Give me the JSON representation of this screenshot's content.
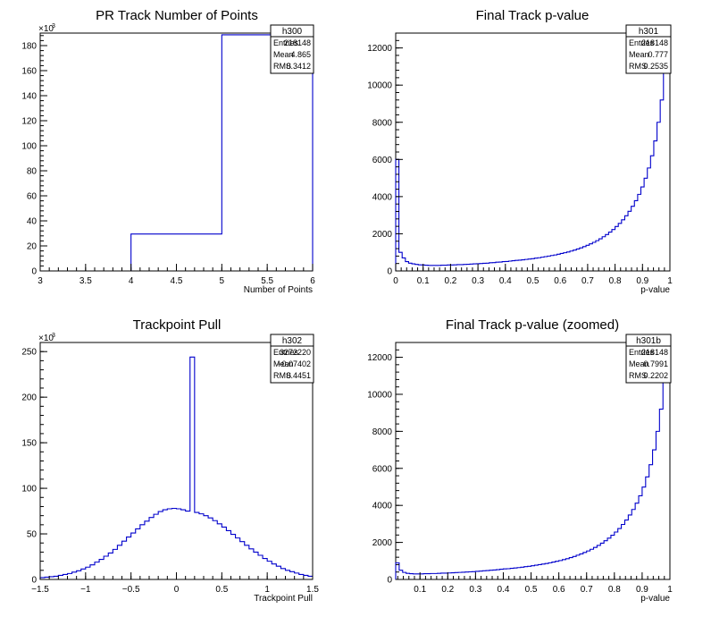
{
  "chart_data": [
    {
      "id": "h300",
      "type": "histogram",
      "title": "PR Track Number of Points",
      "xlabel": "Number of Points",
      "ylabel": "",
      "xlim": [
        3,
        6
      ],
      "ylim": [
        0,
        190000
      ],
      "y_exponent_label": "×10",
      "y_exponent_sup": "3",
      "x_ticks": [
        "3",
        "3.5",
        "4",
        "4.5",
        "5",
        "5.5",
        "6"
      ],
      "y_ticks": [
        "0",
        "20",
        "40",
        "60",
        "80",
        "100",
        "120",
        "140",
        "160",
        "180"
      ],
      "line_color": "#0000cc",
      "stats": {
        "name": "h300",
        "rows": [
          [
            "Entries",
            "218148"
          ],
          [
            "Mean",
            "4.865"
          ],
          [
            "RMS",
            "0.3412"
          ]
        ]
      },
      "bins": {
        "edges": [
          4,
          5,
          6
        ],
        "values": [
          29500,
          188600
        ]
      }
    },
    {
      "id": "h301",
      "type": "histogram",
      "title": "Final Track p-value",
      "xlabel": "p-value",
      "ylabel": "",
      "xlim": [
        0,
        1
      ],
      "ylim": [
        0,
        12800
      ],
      "x_ticks": [
        "0",
        "0.1",
        "0.2",
        "0.3",
        "0.4",
        "0.5",
        "0.6",
        "0.7",
        "0.8",
        "0.9",
        "1"
      ],
      "y_ticks": [
        "0",
        "2000",
        "4000",
        "6000",
        "8000",
        "10000",
        "12000"
      ],
      "line_color": "#0000cc",
      "stats": {
        "name": "h301",
        "rows": [
          [
            "Entries",
            "218148"
          ],
          [
            "Mean",
            "0.777"
          ],
          [
            "RMS",
            "0.2535"
          ]
        ]
      },
      "bins": {
        "xmin": 0,
        "xmax": 1,
        "values": [
          6000,
          1000,
          700,
          500,
          420,
          380,
          350,
          330,
          320,
          310,
          300,
          300,
          300,
          300,
          310,
          310,
          320,
          320,
          330,
          340,
          340,
          350,
          360,
          370,
          380,
          390,
          400,
          410,
          420,
          440,
          450,
          470,
          480,
          500,
          510,
          530,
          550,
          570,
          580,
          600,
          620,
          640,
          660,
          690,
          710,
          740,
          770,
          800,
          830,
          860,
          900,
          940,
          980,
          1020,
          1070,
          1120,
          1180,
          1240,
          1310,
          1380,
          1460,
          1540,
          1630,
          1730,
          1840,
          1960,
          2090,
          2230,
          2390,
          2560,
          2750,
          2970,
          3210,
          3480,
          3780,
          4120,
          4520,
          4990,
          5540,
          6200,
          7000,
          8000,
          9200,
          10700,
          12800
        ]
      }
    },
    {
      "id": "h302",
      "type": "histogram",
      "title": "Trackpoint Pull",
      "xlabel": "Trackpoint Pull",
      "ylabel": "",
      "xlim": [
        -1.5,
        1.5
      ],
      "ylim": [
        0,
        260000
      ],
      "y_exponent_label": "×10",
      "y_exponent_sup": "3",
      "x_ticks": [
        "−1.5",
        "−1",
        "−0.5",
        "0",
        "0.5",
        "1",
        "1.5"
      ],
      "x_tick_values": [
        -1.5,
        -1,
        -0.5,
        0,
        0.5,
        1,
        1.5
      ],
      "y_ticks": [
        "0",
        "50",
        "100",
        "150",
        "200",
        "250"
      ],
      "line_color": "#0000cc",
      "stats": {
        "name": "h302",
        "rows": [
          [
            "Entries",
            "3272220"
          ],
          [
            "Mean",
            "−0.07402"
          ],
          [
            "RMS",
            "0.4451"
          ]
        ]
      },
      "bins": {
        "xmin": -1.5,
        "xmax": 1.5,
        "values": [
          2000,
          2500,
          3000,
          3500,
          4500,
          5500,
          6500,
          8000,
          9500,
          11500,
          13500,
          16000,
          19000,
          22000,
          25500,
          29000,
          33000,
          37500,
          42000,
          46500,
          51000,
          55500,
          60000,
          64000,
          68000,
          71500,
          74500,
          76500,
          77500,
          78000,
          77500,
          76500,
          75000,
          244000,
          73500,
          72000,
          70000,
          67500,
          64500,
          61000,
          57500,
          53500,
          49500,
          45500,
          41500,
          37500,
          33500,
          30000,
          26500,
          23000,
          20000,
          17000,
          14500,
          12000,
          10000,
          8500,
          7000,
          5500,
          4500,
          3500
        ]
      }
    },
    {
      "id": "h301b",
      "type": "histogram",
      "title": "Final Track p-value (zoomed)",
      "xlabel": "p-value",
      "ylabel": "",
      "xlim": [
        0.0125,
        1
      ],
      "ylim": [
        0,
        12800
      ],
      "x_ticks": [
        "0.1",
        "0.2",
        "0.3",
        "0.4",
        "0.5",
        "0.6",
        "0.7",
        "0.8",
        "0.9",
        "1"
      ],
      "x_tick_values": [
        0.1,
        0.2,
        0.3,
        0.4,
        0.5,
        0.6,
        0.7,
        0.8,
        0.9,
        1
      ],
      "y_ticks": [
        "0",
        "2000",
        "4000",
        "6000",
        "8000",
        "10000",
        "12000"
      ],
      "line_color": "#0000cc",
      "stats": {
        "name": "h301b",
        "rows": [
          [
            "Entries",
            "218148"
          ],
          [
            "Mean",
            "0.7991"
          ],
          [
            "RMS",
            "0.2202"
          ]
        ]
      },
      "bins": {
        "xmin": 0.0125,
        "xmax": 1,
        "values": [
          900,
          500,
          380,
          330,
          310,
          300,
          300,
          300,
          310,
          310,
          320,
          320,
          330,
          340,
          340,
          350,
          360,
          370,
          380,
          390,
          400,
          410,
          420,
          440,
          450,
          470,
          480,
          500,
          510,
          530,
          550,
          570,
          580,
          600,
          620,
          640,
          660,
          690,
          710,
          740,
          770,
          800,
          830,
          860,
          900,
          940,
          980,
          1020,
          1070,
          1120,
          1180,
          1240,
          1310,
          1380,
          1460,
          1540,
          1630,
          1730,
          1840,
          1960,
          2090,
          2230,
          2390,
          2560,
          2750,
          2970,
          3210,
          3480,
          3780,
          4120,
          4520,
          4990,
          5540,
          6200,
          7000,
          8000,
          9200,
          10700,
          12800
        ]
      }
    }
  ]
}
